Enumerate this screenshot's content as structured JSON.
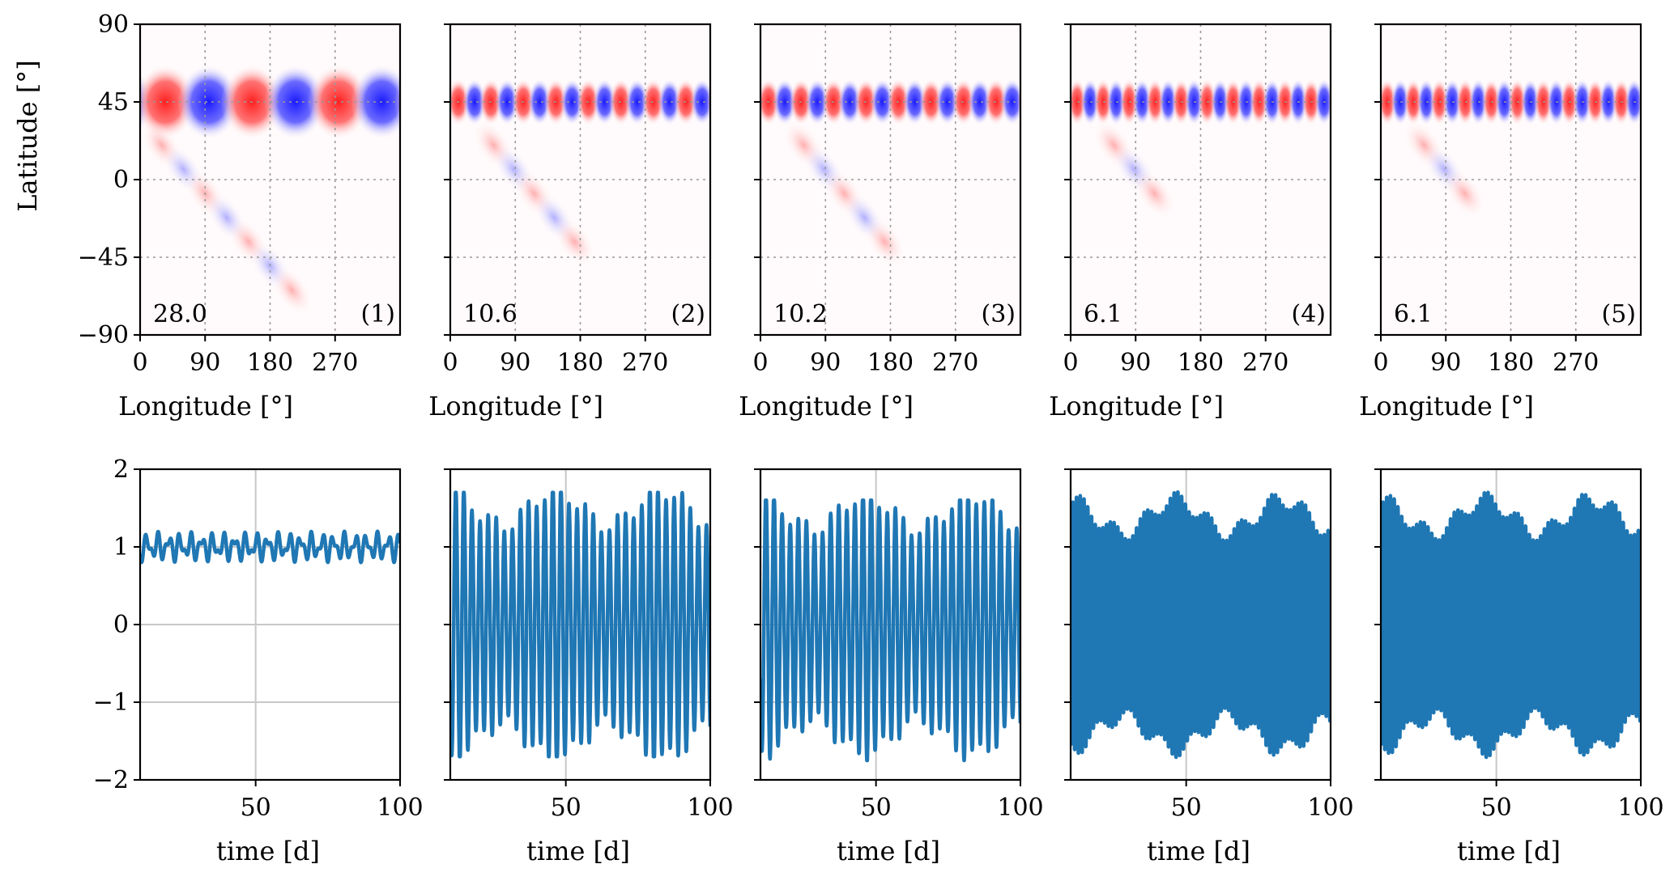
{
  "figure": {
    "top_row": {
      "xlabel": "Longitude [°]",
      "ylabel": "Latitude [°]",
      "x_ticks": [
        "0",
        "90",
        "180",
        "270"
      ],
      "y_ticks": [
        "90",
        "45",
        "0",
        "−45",
        "−90"
      ]
    },
    "bottom_row": {
      "xlabel": "time [d]",
      "x_ticks": [
        "50",
        "100"
      ],
      "y_ticks": [
        "2",
        "1",
        "0",
        "−1",
        "−2"
      ]
    }
  },
  "chart_data": [
    {
      "panel": "(1)",
      "type": "heatmap",
      "value_label": "28.0",
      "xlabel": "Longitude [°]",
      "ylabel": "Latitude [°]",
      "xlim": [
        0,
        360
      ],
      "ylim": [
        -90,
        90
      ],
      "x_ticks": [
        0,
        90,
        180,
        270
      ],
      "y_ticks": [
        90,
        45,
        0,
        -45,
        -90
      ],
      "grid": true,
      "colormap": [
        "#1f1fff",
        "#ffffff",
        "#ff1f1f"
      ],
      "wave_center_lat": 45,
      "wavenumber": 3,
      "tilted_tail_to_south": true
    },
    {
      "panel": "(2)",
      "type": "heatmap",
      "value_label": "10.6",
      "xlabel": "Longitude [°]",
      "xlim": [
        0,
        360
      ],
      "ylim": [
        -90,
        90
      ],
      "x_ticks": [
        0,
        90,
        180,
        270
      ],
      "grid": true,
      "wave_center_lat": 45,
      "wavenumber": 8
    },
    {
      "panel": "(3)",
      "type": "heatmap",
      "value_label": "10.2",
      "xlabel": "Longitude [°]",
      "xlim": [
        0,
        360
      ],
      "ylim": [
        -90,
        90
      ],
      "x_ticks": [
        0,
        90,
        180,
        270
      ],
      "grid": true,
      "wave_center_lat": 45,
      "wavenumber": 8
    },
    {
      "panel": "(4)",
      "type": "heatmap",
      "value_label": "6.1",
      "xlabel": "Longitude [°]",
      "xlim": [
        0,
        360
      ],
      "ylim": [
        -90,
        90
      ],
      "x_ticks": [
        0,
        90,
        180,
        270
      ],
      "grid": true,
      "wave_center_lat": 45,
      "wavenumber": 10
    },
    {
      "panel": "(5)",
      "type": "heatmap",
      "value_label": "6.1",
      "xlabel": "Longitude [°]",
      "xlim": [
        0,
        360
      ],
      "ylim": [
        -90,
        90
      ],
      "x_ticks": [
        0,
        90,
        180,
        270
      ],
      "grid": true,
      "wave_center_lat": 45,
      "wavenumber": 10
    },
    {
      "type": "line",
      "xlabel": "time [d]",
      "xlim": [
        10,
        100
      ],
      "ylim": [
        -2,
        2
      ],
      "x_ticks": [
        50,
        100
      ],
      "y_ticks": [
        2,
        1,
        0,
        -1,
        -2
      ],
      "grid": true,
      "color": "#1f77b4",
      "offset": 1.0,
      "amplitude": 0.12,
      "period_d": 3.8,
      "amplitude_range": [
        0.75,
        1.27
      ]
    },
    {
      "type": "line",
      "xlabel": "time [d]",
      "xlim": [
        10,
        100
      ],
      "ylim": [
        -2,
        2
      ],
      "x_ticks": [
        50,
        100
      ],
      "grid": true,
      "color": "#1f77b4",
      "offset": 0,
      "amplitude": 1.5,
      "period_d": 2.8,
      "amplitude_range": [
        -1.7,
        1.7
      ]
    },
    {
      "type": "line",
      "xlabel": "time [d]",
      "xlim": [
        10,
        100
      ],
      "ylim": [
        -2,
        2
      ],
      "x_ticks": [
        50,
        100
      ],
      "grid": true,
      "color": "#1f77b4",
      "offset": 0,
      "amplitude": 1.45,
      "period_d": 2.8,
      "amplitude_range": [
        -1.75,
        1.6
      ]
    },
    {
      "type": "line",
      "xlabel": "time [d]",
      "xlim": [
        10,
        100
      ],
      "ylim": [
        -2,
        2
      ],
      "x_ticks": [
        50,
        100
      ],
      "grid": true,
      "color": "#1f77b4",
      "offset": 0,
      "amplitude": 1.4,
      "period_d": 1.3,
      "amplitude_range": [
        -1.8,
        1.75
      ]
    },
    {
      "type": "line",
      "xlabel": "time [d]",
      "xlim": [
        10,
        100
      ],
      "ylim": [
        -2,
        2
      ],
      "x_ticks": [
        50,
        100
      ],
      "grid": true,
      "color": "#1f77b4",
      "offset": 0,
      "amplitude": 1.4,
      "period_d": 1.3,
      "amplitude_range": [
        -1.85,
        1.7
      ]
    }
  ]
}
